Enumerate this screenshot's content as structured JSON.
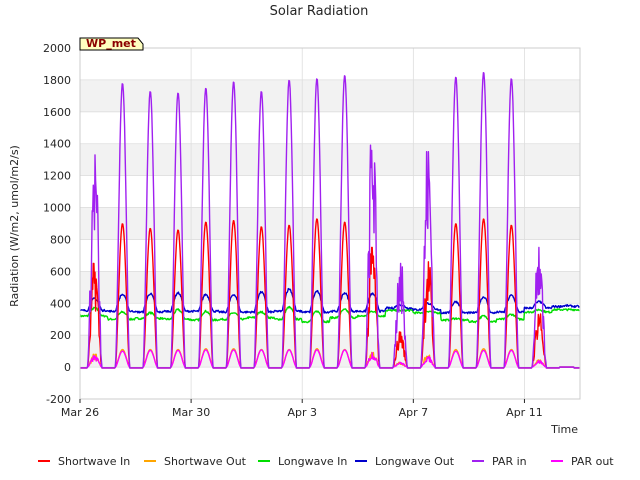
{
  "chart_data": {
    "type": "line",
    "title": "Solar Radiation",
    "xlabel": "Time",
    "ylabel": "Radiation (W/m2, umol/m2/s)",
    "station_tag": "WP_met",
    "xlim": [
      "2024-03-26",
      "2024-04-13"
    ],
    "ylim": [
      -200,
      2000
    ],
    "yticks": [
      -200,
      0,
      200,
      400,
      600,
      800,
      1000,
      1200,
      1400,
      1600,
      1800,
      2000
    ],
    "xticks": [
      {
        "date": "2024-03-26",
        "label": "Mar 26"
      },
      {
        "date": "2024-03-30",
        "label": "Mar 30"
      },
      {
        "date": "2024-04-03",
        "label": "Apr 3"
      },
      {
        "date": "2024-04-07",
        "label": "Apr 7"
      },
      {
        "date": "2024-04-11",
        "label": "Apr 11"
      }
    ],
    "days": [
      "2024-03-26",
      "2024-03-27",
      "2024-03-28",
      "2024-03-29",
      "2024-03-30",
      "2024-03-31",
      "2024-04-01",
      "2024-04-02",
      "2024-04-03",
      "2024-04-04",
      "2024-04-05",
      "2024-04-06",
      "2024-04-07",
      "2024-04-08",
      "2024-04-09",
      "2024-04-10",
      "2024-04-11",
      "2024-04-12"
    ],
    "grid": true,
    "legend_position": "bottom",
    "series": [
      {
        "name": "Shortwave In",
        "color": "#ff0000",
        "kind": "daily_peak",
        "daily_peak": [
          650,
          900,
          870,
          860,
          910,
          920,
          880,
          890,
          930,
          910,
          750,
          220,
          660,
          900,
          930,
          890,
          350,
          0
        ]
      },
      {
        "name": "Shortwave Out",
        "color": "#ffa500",
        "kind": "daily_peak",
        "daily_peak": [
          80,
          110,
          110,
          110,
          115,
          115,
          110,
          110,
          115,
          110,
          95,
          30,
          80,
          110,
          115,
          110,
          45,
          0
        ]
      },
      {
        "name": "Longwave In",
        "color": "#00dd00",
        "kind": "daily_range",
        "night": [
          320,
          300,
          305,
          300,
          295,
          300,
          310,
          300,
          285,
          310,
          320,
          355,
          340,
          295,
          285,
          300,
          345,
          360
        ],
        "day": [
          370,
          345,
          340,
          360,
          350,
          340,
          345,
          375,
          350,
          360,
          350,
          355,
          350,
          305,
          320,
          330,
          360,
          360
        ]
      },
      {
        "name": "Longwave Out",
        "color": "#0000cc",
        "kind": "daily_range",
        "night": [
          355,
          350,
          345,
          350,
          350,
          345,
          345,
          350,
          345,
          350,
          350,
          370,
          360,
          340,
          340,
          345,
          370,
          380
        ],
        "day": [
          430,
          455,
          460,
          465,
          455,
          455,
          470,
          490,
          475,
          465,
          460,
          390,
          400,
          410,
          440,
          450,
          410,
          385
        ]
      },
      {
        "name": "PAR in",
        "color": "#a020f0",
        "kind": "daily_peak",
        "daily_peak": [
          1330,
          1780,
          1730,
          1720,
          1750,
          1790,
          1730,
          1800,
          1810,
          1830,
          1460,
          650,
          1350,
          1820,
          1850,
          1810,
          780,
          0
        ]
      },
      {
        "name": "PAR out",
        "color": "#ff00ff",
        "kind": "daily_peak",
        "daily_peak": [
          70,
          100,
          105,
          105,
          108,
          108,
          108,
          108,
          108,
          108,
          90,
          30,
          65,
          100,
          105,
          105,
          40,
          0
        ]
      }
    ]
  }
}
